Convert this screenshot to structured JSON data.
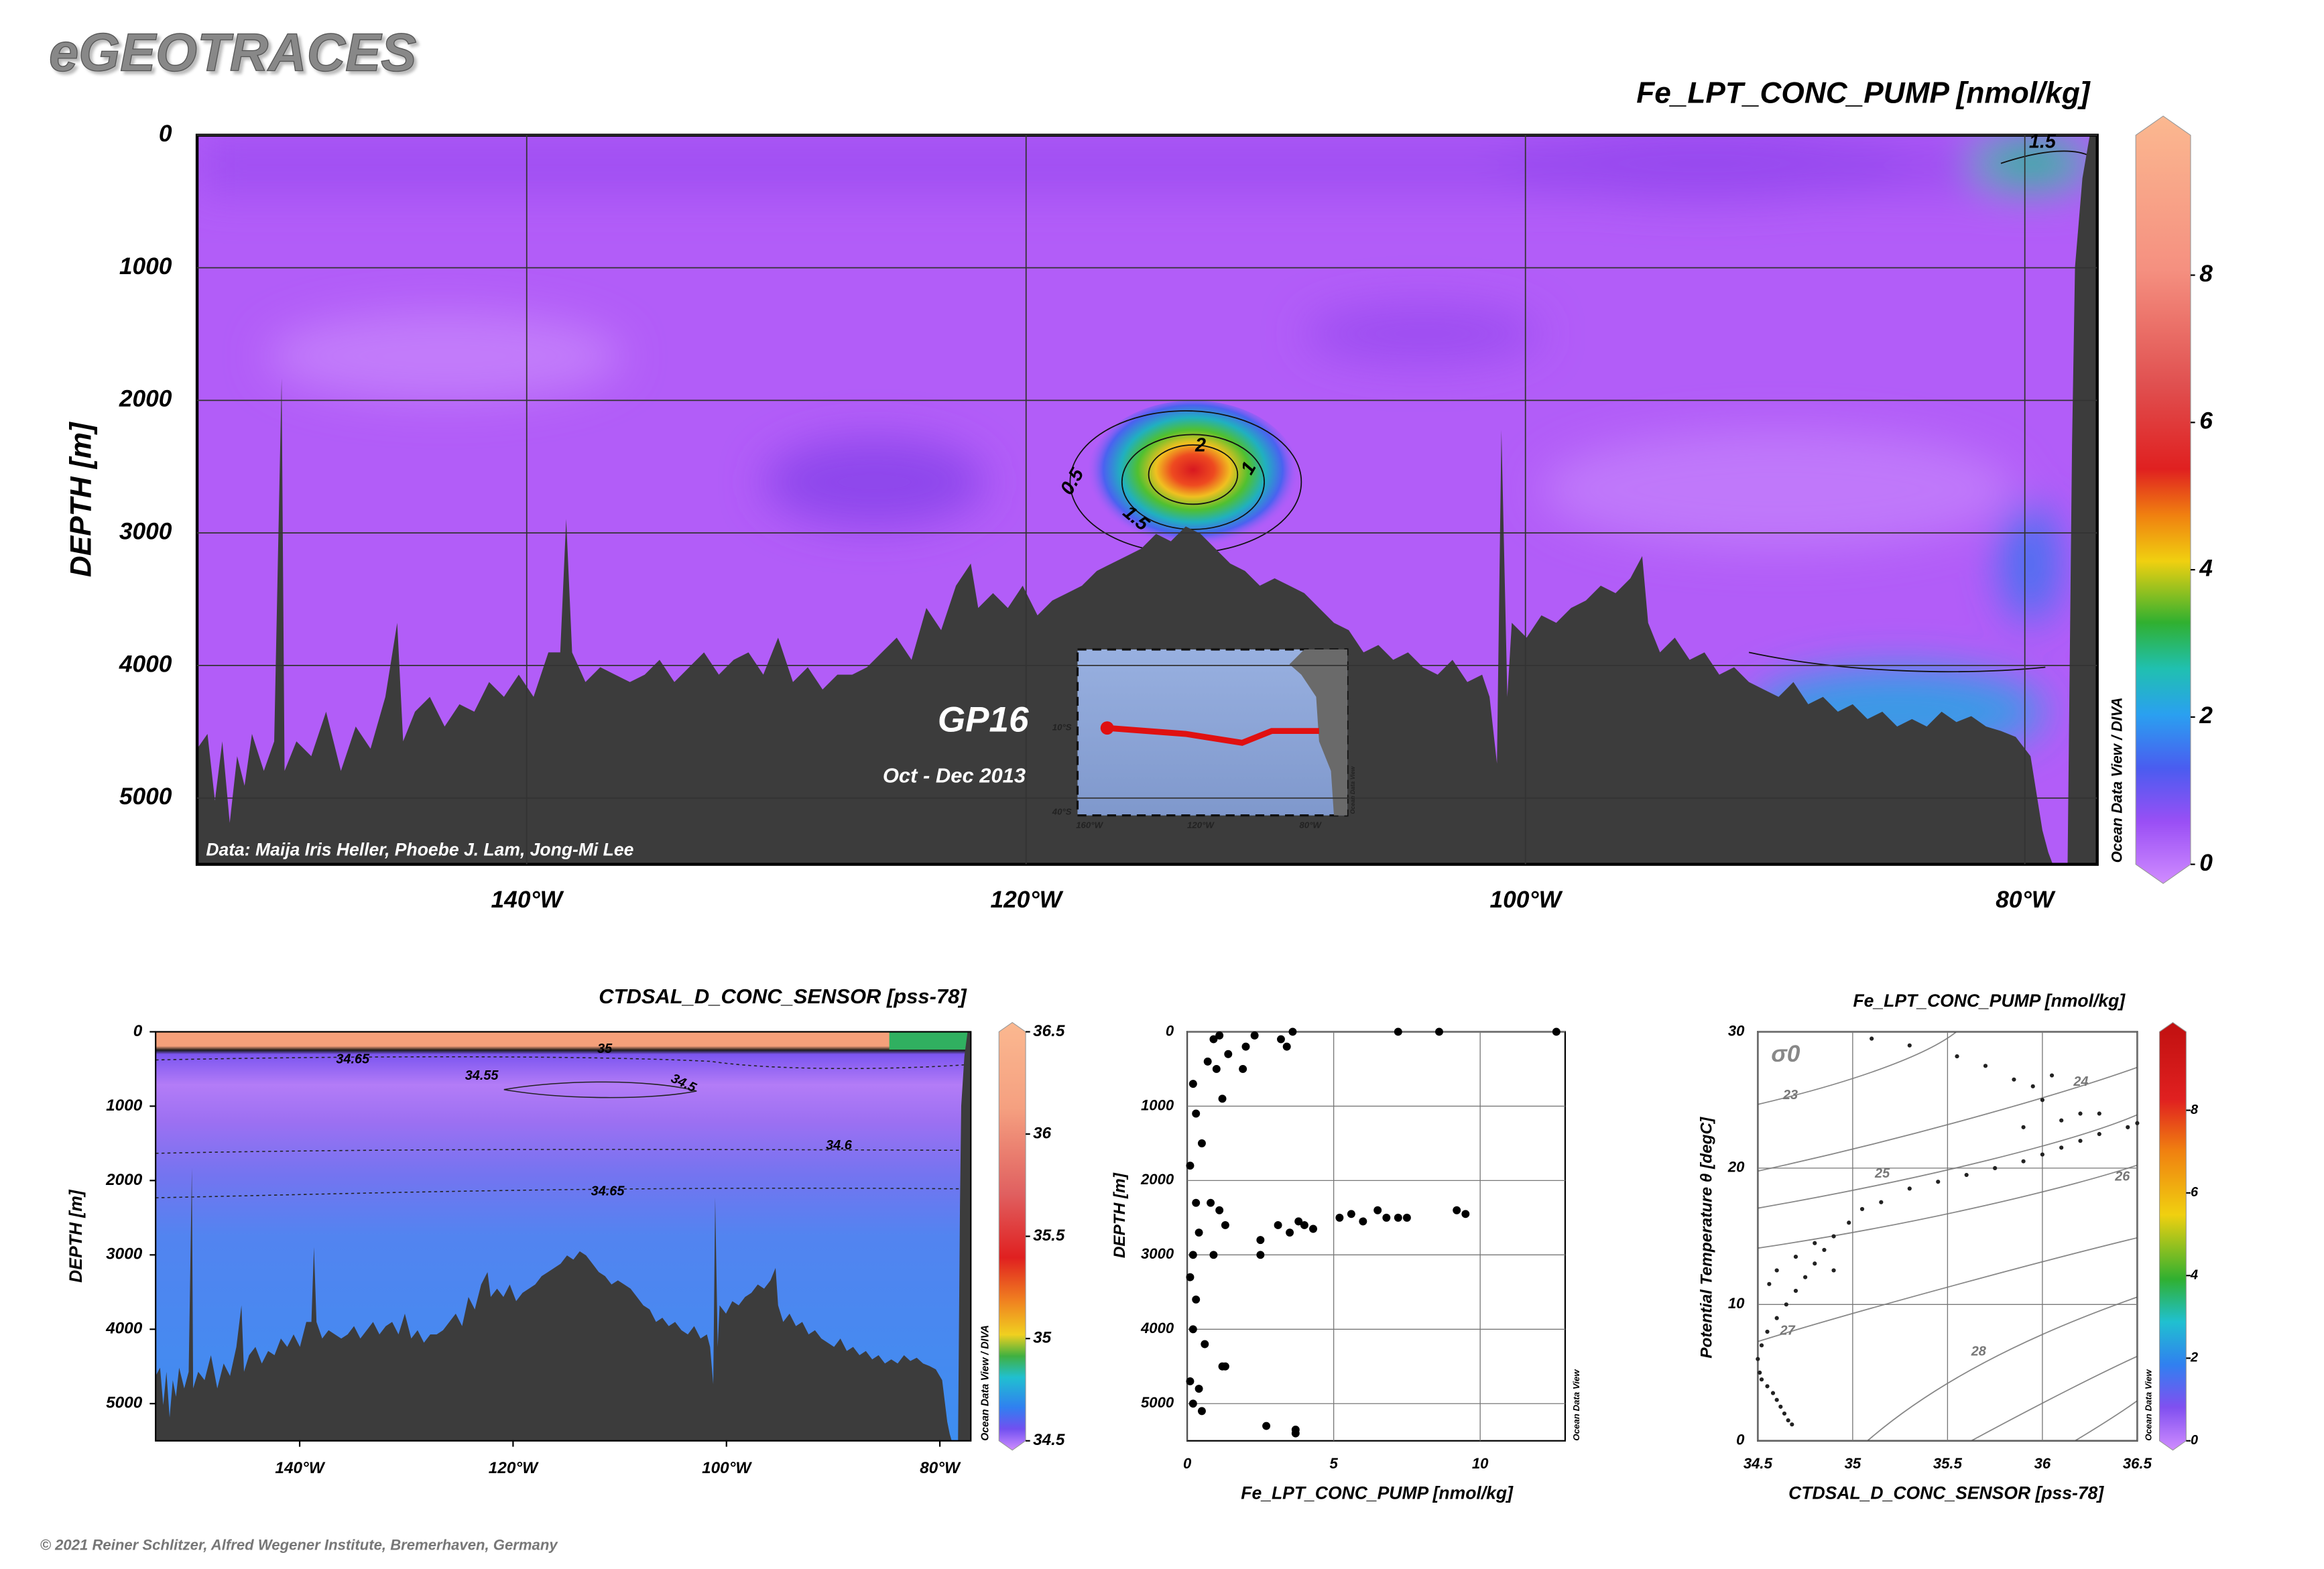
{
  "header": {
    "logo": "eGEOTRACES",
    "footer": "© 2021 Reiner Schlitzer, Alfred Wegener Institute, Bremerhaven, Germany"
  },
  "chart_data": [
    {
      "type": "section",
      "title": "Fe_LPT_CONC_PUMP [nmol/kg]",
      "y_label": "DEPTH [m]",
      "xlim": [
        -153.2,
        -77.1
      ],
      "xticks": [
        {
          "value": -140,
          "label": "140°W"
        },
        {
          "value": -120,
          "label": "120°W"
        },
        {
          "value": -100,
          "label": "100°W"
        },
        {
          "value": -80,
          "label": "80°W"
        }
      ],
      "ylim": [
        5500,
        0
      ],
      "yticks": [
        0,
        1000,
        2000,
        3000,
        4000,
        5000
      ],
      "grid": true,
      "contour_labels": [
        0.5,
        1,
        1.5,
        2,
        1.5
      ],
      "annotations": {
        "cruise": "GP16",
        "dates": "Oct - Dec 2013",
        "credit": "Data: Maija Iris Heller, Phoebe J. Lam, Jong-Mi Lee",
        "software": "Ocean Data View / DIVA"
      },
      "inset_labels": [
        "10°S",
        "40°S",
        "160°W",
        "120°W",
        "80°W",
        "Ocean Data View"
      ],
      "colorbar": {
        "lim": [
          0,
          9.9
        ],
        "ticks": [
          0,
          2,
          4,
          6,
          8
        ]
      }
    },
    {
      "type": "section",
      "title": "CTDSAL_D_CONC_SENSOR [pss-78]",
      "y_label": "DEPTH [m]",
      "xlim": [
        -153.5,
        -77.1
      ],
      "xticks": [
        {
          "value": -140,
          "label": "140°W"
        },
        {
          "value": -120,
          "label": "120°W"
        },
        {
          "value": -100,
          "label": "100°W"
        },
        {
          "value": -80,
          "label": "80°W"
        }
      ],
      "ylim": [
        5500,
        0
      ],
      "yticks": [
        0,
        1000,
        2000,
        3000,
        4000,
        5000
      ],
      "grid": false,
      "contour_labels": [
        34.65,
        34.55,
        34.5,
        34.6,
        34.65,
        35
      ],
      "annotations": {
        "software": "Ocean Data View / DIVA"
      },
      "colorbar": {
        "lim": [
          34.5,
          36.5
        ],
        "ticks": [
          34.5,
          35,
          35.5,
          36,
          36.5
        ]
      }
    },
    {
      "type": "scatter",
      "x_label": "Fe_LPT_CONC_PUMP [nmol/kg]",
      "y_label": "DEPTH [m]",
      "color": "#000000",
      "xlim": [
        0,
        12.9
      ],
      "xticks": [
        0,
        5,
        10
      ],
      "ylim": [
        5500,
        0
      ],
      "yticks": [
        0,
        1000,
        2000,
        3000,
        4000,
        5000
      ],
      "grid": true,
      "x": [
        5.2,
        5.6,
        6,
        6.5,
        6.8,
        7.2,
        7.5,
        9.2,
        9.5,
        4.3,
        3.8,
        3.5,
        4,
        3.1,
        2.5,
        2.5,
        12.6,
        8.6,
        7.2,
        3.6,
        3.4,
        3.2,
        2.3,
        2,
        1.4,
        1.1,
        1,
        0.7,
        1.9,
        0.9,
        0.2,
        0.3,
        0.5,
        0.1,
        0.3,
        0.8,
        1.1,
        1.3,
        0.4,
        0.2,
        0.9,
        0.1,
        0.3,
        0.2,
        0.6,
        1.2,
        1.3,
        0.1,
        0.4,
        0.2,
        2.7,
        3.7,
        3.7,
        0.5,
        1.2
      ],
      "values": [
        2500,
        2450,
        2550,
        2400,
        2500,
        2500,
        2500,
        2400,
        2450,
        2650,
        2550,
        2700,
        2600,
        2600,
        2800,
        3000,
        0,
        0,
        0,
        0,
        200,
        100,
        50,
        200,
        300,
        50,
        500,
        400,
        500,
        100,
        700,
        1100,
        1500,
        1800,
        2300,
        2300,
        2400,
        2600,
        2700,
        3000,
        3000,
        3300,
        3600,
        4000,
        4200,
        4500,
        4500,
        4700,
        4800,
        5000,
        5300,
        5350,
        5400,
        5100,
        900
      ],
      "annotations": {
        "software": "Ocean Data View"
      }
    },
    {
      "type": "scatter",
      "title": "Fe_LPT_CONC_PUMP [nmol/kg]",
      "x_label": "CTDSAL_D_CONC_SENSOR [pss-78]",
      "y_label": "Potential Temperature θ [degC]",
      "color": "#222222",
      "xlim": [
        34.5,
        36.5
      ],
      "xticks": [
        34.5,
        35,
        35.5,
        36,
        36.5
      ],
      "ylim": [
        0,
        30
      ],
      "yticks": [
        0,
        10,
        20,
        30
      ],
      "grid": true,
      "x": [
        34.68,
        34.66,
        34.64,
        34.62,
        34.6,
        34.58,
        34.55,
        34.52,
        34.51,
        34.5,
        34.52,
        34.55,
        34.6,
        34.65,
        34.7,
        34.75,
        34.8,
        34.85,
        34.9,
        34.98,
        35.05,
        35.15,
        35.3,
        35.45,
        35.6,
        35.75,
        35.9,
        36,
        36.1,
        36.2,
        36.3,
        36.45,
        36.5,
        36.2,
        36,
        35.95,
        35.85,
        36.05,
        35.7,
        35.55,
        35.3,
        35.1,
        34.56,
        34.6,
        34.7,
        34.8,
        34.9,
        35.9,
        36.1,
        36.3
      ],
      "values": [
        1.2,
        1.5,
        2,
        2.5,
        3,
        3.5,
        4,
        4.5,
        5,
        6,
        7,
        8,
        9,
        10,
        11,
        12,
        13,
        14,
        15,
        16,
        17,
        17.5,
        18.5,
        19,
        19.5,
        20,
        20.5,
        21,
        21.5,
        22,
        22.5,
        23,
        23.3,
        24,
        25,
        26,
        26.5,
        26.8,
        27.5,
        28.2,
        29,
        29.5,
        11.5,
        12.5,
        13.5,
        14.5,
        12.5,
        23,
        23.5,
        24
      ],
      "density_symbol": "σ0",
      "isopycnal_labels": [
        23,
        24,
        25,
        26,
        27,
        28
      ],
      "annotations": {
        "software": "Ocean Data View"
      },
      "colorbar": {
        "lim": [
          0,
          9.9
        ],
        "ticks": [
          0,
          2,
          4,
          6,
          8
        ]
      }
    }
  ]
}
